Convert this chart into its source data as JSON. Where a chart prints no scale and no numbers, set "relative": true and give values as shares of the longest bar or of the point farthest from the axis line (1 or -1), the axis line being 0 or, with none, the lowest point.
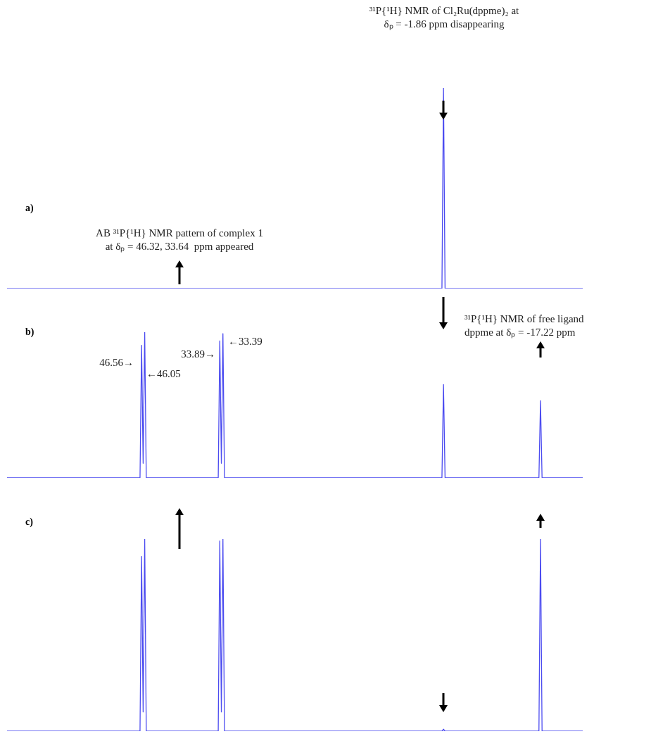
{
  "chart_data": [
    {
      "type": "line",
      "title": "a)",
      "relative": true,
      "color": "#4b4bf0",
      "categories": [
        null,
        null,
        null,
        null,
        null,
        null,
        null,
        null,
        null,
        null,
        null,
        null,
        null,
        null,
        null,
        null,
        null,
        null,
        null,
        null,
        null,
        null,
        null,
        null,
        null,
        null,
        null,
        null,
        null,
        null,
        null,
        null,
        null,
        null,
        null,
        null,
        null,
        null,
        null,
        null,
        null,
        null,
        null,
        null,
        null,
        null,
        null,
        null,
        null,
        null,
        null,
        null,
        null,
        null,
        null,
        null,
        null,
        null,
        null,
        null,
        null,
        null,
        null,
        null,
        null,
        null,
        null,
        null,
        null,
        null,
        null,
        null,
        null,
        null,
        null,
        null,
        null,
        null,
        null,
        null,
        null,
        null,
        null,
        null,
        null,
        null,
        null,
        null,
        null,
        null,
        null,
        null,
        null,
        null,
        null,
        null,
        null,
        null,
        null,
        null,
        null,
        null,
        null,
        null,
        null,
        null,
        null,
        null,
        null,
        null,
        null,
        null,
        null,
        null,
        null,
        null,
        null,
        null,
        null,
        null,
        null,
        null,
        null,
        null,
        null,
        null,
        null,
        null,
        null,
        null,
        null,
        null,
        null,
        null,
        null,
        null,
        null,
        null,
        null,
        null,
        null,
        null,
        null,
        null,
        null,
        null,
        null,
        null,
        null,
        null,
        null,
        null,
        null,
        null,
        null,
        null,
        null,
        null,
        null,
        null,
        null,
        null,
        null,
        null,
        null,
        null,
        null,
        null,
        null,
        null,
        null,
        null,
        null,
        null,
        null,
        null,
        null,
        null,
        null,
        null,
        null,
        null,
        null,
        null,
        null,
        null,
        null,
        null,
        null,
        null,
        null,
        null,
        null,
        null,
        null,
        null,
        null,
        null,
        null,
        null,
        null,
        null,
        null,
        null,
        null,
        null,
        null,
        null,
        null,
        null,
        null,
        null,
        null,
        null,
        null,
        null,
        null,
        null,
        null,
        null,
        null,
        null,
        null,
        null,
        null,
        null,
        null,
        null,
        null,
        null,
        null,
        null,
        null,
        null,
        null,
        null,
        null,
        null,
        null,
        null,
        null,
        null,
        null,
        null,
        null,
        null,
        null,
        null,
        null,
        null,
        null,
        null,
        null,
        null,
        null,
        null,
        null,
        null,
        null,
        null,
        null,
        null,
        null,
        null,
        null,
        null,
        null,
        null,
        null,
        null,
        null,
        null,
        null,
        null,
        null,
        null,
        null,
        null,
        null,
        null,
        null,
        null,
        null,
        null,
        null,
        null,
        null,
        null,
        null,
        null,
        null,
        null,
        null,
        null,
        null,
        null,
        null,
        null,
        null,
        null,
        null,
        null,
        null,
        null,
        null,
        null,
        null,
        null,
        null,
        null,
        null,
        null,
        null,
        null,
        null,
        null,
        null,
        null,
        null,
        null,
        null,
        null,
        null,
        null,
        null,
        null,
        null,
        null,
        null,
        null,
        null,
        null,
        null,
        null,
        null,
        null,
        null,
        null,
        null,
        null,
        null,
        null,
        null,
        null,
        null,
        null,
        null,
        null,
        null,
        null,
        null,
        null,
        null,
        null,
        null,
        null,
        null,
        null,
        null,
        null,
        null,
        null,
        null,
        null,
        null,
        null,
        null,
        null,
        null
      ],
      "values": [
        0,
        0,
        0,
        0,
        0,
        0,
        0,
        0,
        0,
        0,
        0,
        0,
        0,
        0,
        0,
        0,
        0,
        0,
        0,
        0,
        0,
        0,
        0,
        0,
        0,
        0,
        0,
        0,
        0,
        0,
        0,
        0,
        0,
        0,
        0,
        0,
        0,
        0,
        0,
        0,
        0,
        0,
        0,
        0,
        0,
        0,
        0,
        0,
        0,
        0,
        0,
        0,
        0,
        0,
        0,
        0,
        0,
        0,
        0,
        0,
        0,
        0,
        0,
        0,
        0,
        0,
        0,
        0,
        0,
        0,
        0,
        0,
        0,
        0,
        0,
        0,
        0,
        0,
        0,
        0,
        0,
        0,
        0,
        0,
        0,
        0,
        0,
        0,
        0,
        0,
        0,
        0,
        0,
        0,
        0,
        0,
        0,
        0,
        0,
        0,
        0,
        0,
        0,
        0,
        0,
        0,
        0,
        0,
        0,
        0,
        0,
        0,
        0,
        0,
        0,
        0,
        0,
        0,
        0,
        0,
        0,
        0,
        0,
        0,
        0,
        0,
        0,
        0,
        0,
        0,
        0,
        0,
        0,
        0,
        0,
        0,
        0,
        0,
        0,
        0,
        0,
        0,
        0,
        0,
        0,
        0,
        0,
        0,
        0,
        0,
        0,
        0,
        0,
        0,
        0,
        0,
        0,
        0,
        0,
        0,
        0,
        0,
        0,
        0,
        0,
        0,
        0,
        0,
        0,
        0,
        0,
        0,
        0,
        0,
        0,
        0,
        0,
        0,
        0,
        0,
        0,
        0,
        0,
        0,
        0,
        0,
        0,
        0,
        0,
        0,
        0,
        0,
        0,
        0,
        0,
        0,
        0,
        0,
        0,
        0,
        0,
        0,
        0,
        0,
        0,
        0,
        0,
        0,
        0,
        0,
        0,
        0,
        0,
        0,
        0,
        0,
        0,
        0,
        0,
        0,
        0,
        0,
        0,
        0,
        0,
        0,
        0,
        0,
        0,
        0,
        0,
        0,
        0,
        0,
        0,
        0,
        0,
        0,
        0,
        0,
        0,
        0,
        0,
        0,
        0,
        0,
        0,
        0,
        0,
        0,
        0,
        0,
        0,
        0,
        0,
        0,
        0,
        0,
        0,
        0,
        0,
        0,
        0,
        0,
        0,
        0,
        0,
        0,
        0,
        0,
        0,
        0,
        0,
        0,
        0,
        0,
        0,
        0,
        0,
        1,
        0,
        0,
        0,
        0,
        0,
        0,
        0,
        0,
        0,
        0,
        0,
        0,
        0,
        0,
        0,
        0,
        0,
        0,
        0,
        0,
        0,
        0,
        0,
        0,
        0,
        0,
        0,
        0,
        0,
        0,
        0,
        0,
        0,
        0,
        0,
        0,
        0,
        0,
        0,
        0,
        0,
        0,
        0,
        0,
        0,
        0,
        0,
        0,
        0,
        0,
        0,
        0,
        0,
        0,
        0,
        0,
        0,
        0,
        0,
        0,
        0,
        0,
        0,
        0,
        0,
        0,
        0,
        0,
        0,
        0,
        0,
        0,
        0,
        0,
        0,
        0,
        0,
        0,
        0,
        0,
        0,
        0,
        0,
        0,
        0,
        0,
        0,
        0,
        0
      ],
      "annotations": [
        "³¹P{¹H} NMR of Cl₂Ru(dppme)₂ at δₚ = -1.86 ppm disappearing",
        "AB ³¹P{¹H} NMR pattern of complex 1 at δₚ = 46.32, 33.64  ppm appeared"
      ]
    },
    {
      "type": "line",
      "title": "b)",
      "relative": true,
      "color": "#4b4bf0",
      "categories": [
        null,
        null,
        null,
        null,
        null,
        null,
        null,
        null,
        null,
        null,
        null,
        null,
        null,
        null,
        null,
        null,
        null,
        null,
        null,
        null,
        null,
        null,
        null,
        null,
        null,
        null,
        null,
        null,
        null,
        null,
        null,
        null,
        null,
        null,
        null,
        null,
        null,
        null,
        null,
        null,
        null,
        null,
        null,
        null,
        null,
        null,
        null,
        null,
        null,
        null,
        null,
        null,
        null,
        null,
        null,
        null,
        null,
        null,
        null,
        null,
        null,
        null,
        null,
        null,
        null,
        null,
        null,
        null,
        null,
        null,
        null,
        null,
        null,
        null,
        null,
        null,
        null,
        null,
        null,
        null,
        null,
        null,
        null,
        null,
        null,
        null,
        null,
        null,
        null,
        null,
        null,
        null,
        null,
        null,
        null,
        null,
        null,
        null,
        null,
        null,
        null,
        null,
        null,
        null,
        null,
        null,
        null,
        null,
        null,
        null,
        null,
        null,
        null,
        null,
        null,
        null,
        null,
        null,
        null,
        null,
        null,
        null,
        null,
        null,
        null,
        null,
        null,
        null,
        null,
        null,
        null,
        null,
        null,
        null,
        null,
        null,
        null,
        null,
        null,
        null,
        null,
        null,
        null,
        null,
        null,
        null,
        null,
        null,
        null,
        null,
        null,
        null,
        null,
        null,
        null,
        null,
        null,
        null,
        null,
        null,
        null,
        null,
        null,
        null,
        null,
        null,
        null,
        null,
        null,
        null,
        null,
        null,
        null,
        null,
        null,
        null,
        null,
        null,
        null,
        null,
        null,
        null,
        null,
        null,
        null,
        null,
        null,
        null,
        null,
        null,
        null,
        null,
        null,
        null,
        null,
        null,
        null,
        null,
        null,
        null,
        null,
        null,
        null,
        null,
        null,
        null,
        null,
        null,
        null,
        null,
        null,
        null,
        null,
        null,
        null,
        null,
        null,
        null,
        null,
        null,
        null,
        null,
        null,
        null,
        null,
        null,
        null,
        null,
        null,
        null,
        null,
        null,
        null,
        null,
        null,
        null,
        null,
        null,
        null,
        null,
        null,
        null,
        null,
        null,
        null,
        null,
        null,
        null,
        null,
        null,
        null,
        null,
        null,
        null,
        null,
        null,
        null,
        null,
        null,
        null,
        null,
        null,
        null,
        null,
        null,
        null,
        null,
        null,
        null,
        null,
        null,
        null,
        null,
        null,
        null,
        null,
        null,
        null,
        null,
        null,
        null,
        null,
        null,
        null,
        null,
        null,
        null,
        null,
        null,
        null,
        null,
        null,
        null,
        null,
        null,
        null,
        null,
        null,
        null,
        null,
        null,
        null,
        null,
        null,
        null,
        null,
        null,
        null,
        null,
        null,
        null,
        null,
        null,
        null,
        null,
        null,
        null,
        null,
        null,
        null,
        null,
        null,
        null,
        null,
        null,
        null,
        null,
        null,
        null,
        null,
        null,
        null,
        null,
        null,
        null,
        null,
        null,
        null,
        null,
        null,
        null,
        null,
        null,
        null,
        null,
        null,
        null,
        null,
        null,
        null,
        null,
        null,
        null,
        null,
        null,
        null,
        null,
        null,
        null,
        null,
        null,
        null,
        null,
        null,
        null,
        null,
        null,
        null,
        null
      ],
      "values": [
        0,
        0,
        0,
        0,
        0,
        0,
        0,
        0,
        0,
        0,
        0,
        0,
        0,
        0,
        0,
        0,
        0,
        0,
        0,
        0,
        0,
        0,
        0,
        0,
        0,
        0,
        0,
        0,
        0,
        0,
        0,
        0,
        0,
        0,
        0,
        0,
        0,
        0,
        0,
        0,
        0,
        0,
        0,
        0,
        0,
        0,
        0,
        0,
        0,
        0,
        0,
        0,
        0,
        0,
        0,
        0,
        0,
        0,
        0,
        0,
        0,
        0,
        0,
        0,
        0,
        0,
        0,
        0,
        0,
        0,
        0,
        0,
        0,
        0,
        0,
        0,
        0,
        0,
        0,
        0,
        0,
        0,
        0,
        0,
        0,
        0,
        0.91,
        0.1,
        1,
        0,
        0,
        0,
        0,
        0,
        0,
        0,
        0,
        0,
        0,
        0,
        0,
        0,
        0,
        0,
        0,
        0,
        0,
        0,
        0,
        0,
        0,
        0,
        0,
        0,
        0,
        0,
        0,
        0,
        0,
        0,
        0,
        0,
        0,
        0,
        0,
        0,
        0,
        0,
        0,
        0,
        0,
        0,
        0,
        0,
        0,
        0,
        0.94,
        0.1,
        0.99,
        0,
        0,
        0,
        0,
        0,
        0,
        0,
        0,
        0,
        0,
        0,
        0,
        0,
        0,
        0,
        0,
        0,
        0,
        0,
        0,
        0,
        0,
        0,
        0,
        0,
        0,
        0,
        0,
        0,
        0,
        0,
        0,
        0,
        0,
        0,
        0,
        0,
        0,
        0,
        0,
        0,
        0,
        0,
        0,
        0,
        0,
        0,
        0,
        0,
        0,
        0,
        0,
        0,
        0,
        0,
        0,
        0,
        0,
        0,
        0,
        0,
        0,
        0,
        0,
        0,
        0,
        0,
        0,
        0,
        0,
        0,
        0,
        0,
        0,
        0,
        0,
        0,
        0,
        0,
        0,
        0,
        0,
        0,
        0,
        0,
        0,
        0,
        0,
        0,
        0,
        0,
        0,
        0,
        0,
        0,
        0,
        0,
        0,
        0,
        0,
        0,
        0,
        0,
        0,
        0,
        0,
        0,
        0,
        0,
        0,
        0,
        0,
        0,
        0,
        0,
        0,
        0,
        0,
        0,
        0,
        0,
        0,
        0,
        0,
        0,
        0,
        0,
        0,
        0,
        0,
        0,
        0,
        0,
        0,
        0,
        0,
        0,
        0,
        0,
        0,
        0.64,
        0,
        0,
        0,
        0,
        0,
        0,
        0,
        0,
        0,
        0,
        0,
        0,
        0,
        0,
        0,
        0,
        0,
        0,
        0,
        0,
        0,
        0,
        0,
        0,
        0,
        0,
        0,
        0,
        0,
        0,
        0,
        0,
        0,
        0,
        0,
        0,
        0,
        0,
        0,
        0,
        0,
        0,
        0,
        0,
        0,
        0,
        0,
        0,
        0,
        0,
        0,
        0,
        0,
        0,
        0,
        0,
        0,
        0,
        0,
        0,
        0,
        0.53,
        0,
        0,
        0,
        0,
        0,
        0,
        0,
        0,
        0,
        0,
        0,
        0,
        0,
        0,
        0,
        0,
        0,
        0,
        0,
        0,
        0,
        0,
        0,
        0,
        0,
        0,
        0
      ],
      "annotations": [
        "³¹P{¹H} NMR of free ligand dppme at δₚ = -17.22 ppm",
        "46.56→",
        "←46.05",
        "33.89→",
        "←33.39"
      ]
    },
    {
      "type": "line",
      "title": "c)",
      "relative": true,
      "color": "#4b4bf0",
      "categories": [
        null,
        null,
        null,
        null,
        null,
        null,
        null,
        null,
        null,
        null,
        null,
        null,
        null,
        null,
        null,
        null,
        null,
        null,
        null,
        null,
        null,
        null,
        null,
        null,
        null,
        null,
        null,
        null,
        null,
        null,
        null,
        null,
        null,
        null,
        null,
        null,
        null,
        null,
        null,
        null,
        null,
        null,
        null,
        null,
        null,
        null,
        null,
        null,
        null,
        null,
        null,
        null,
        null,
        null,
        null,
        null,
        null,
        null,
        null,
        null,
        null,
        null,
        null,
        null,
        null,
        null,
        null,
        null,
        null,
        null,
        null,
        null,
        null,
        null,
        null,
        null,
        null,
        null,
        null,
        null,
        null,
        null,
        null,
        null,
        null,
        null,
        null,
        null,
        null,
        null,
        null,
        null,
        null,
        null,
        null,
        null,
        null,
        null,
        null,
        null,
        null,
        null,
        null,
        null,
        null,
        null,
        null,
        null,
        null,
        null,
        null,
        null,
        null,
        null,
        null,
        null,
        null,
        null,
        null,
        null,
        null,
        null,
        null,
        null,
        null,
        null,
        null,
        null,
        null,
        null,
        null,
        null,
        null,
        null,
        null,
        null,
        null,
        null,
        null,
        null,
        null,
        null,
        null,
        null,
        null,
        null,
        null,
        null,
        null,
        null,
        null,
        null,
        null,
        null,
        null,
        null,
        null,
        null,
        null,
        null,
        null,
        null,
        null,
        null,
        null,
        null,
        null,
        null,
        null,
        null,
        null,
        null,
        null,
        null,
        null,
        null,
        null,
        null,
        null,
        null,
        null,
        null,
        null,
        null,
        null,
        null,
        null,
        null,
        null,
        null,
        null,
        null,
        null,
        null,
        null,
        null,
        null,
        null,
        null,
        null,
        null,
        null,
        null,
        null,
        null,
        null,
        null,
        null,
        null,
        null,
        null,
        null,
        null,
        null,
        null,
        null,
        null,
        null,
        null,
        null,
        null,
        null,
        null,
        null,
        null,
        null,
        null,
        null,
        null,
        null,
        null,
        null,
        null,
        null,
        null,
        null,
        null,
        null,
        null,
        null,
        null,
        null,
        null,
        null,
        null,
        null,
        null,
        null,
        null,
        null,
        null,
        null,
        null,
        null,
        null,
        null,
        null,
        null,
        null,
        null,
        null,
        null,
        null,
        null,
        null,
        null,
        null,
        null,
        null,
        null,
        null,
        null,
        null,
        null,
        null,
        null,
        null,
        null,
        null,
        null,
        null,
        null,
        null,
        null,
        null,
        null,
        null,
        null,
        null,
        null,
        null,
        null,
        null,
        null,
        null,
        null,
        null,
        null,
        null,
        null,
        null,
        null,
        null,
        null,
        null,
        null,
        null,
        null,
        null,
        null,
        null,
        null,
        null,
        null,
        null,
        null,
        null,
        null,
        null,
        null,
        null,
        null,
        null,
        null,
        null,
        null,
        null,
        null,
        null,
        null,
        null,
        null,
        null,
        null,
        null,
        null,
        null,
        null,
        null,
        null,
        null,
        null,
        null,
        null,
        null,
        null,
        null,
        null,
        null,
        null,
        null,
        null,
        null,
        null,
        null,
        null,
        null,
        null,
        null,
        null,
        null,
        null,
        null,
        null,
        null,
        null,
        null,
        null,
        null
      ],
      "values": [
        0,
        0,
        0,
        0,
        0,
        0,
        0,
        0,
        0,
        0,
        0,
        0,
        0,
        0,
        0,
        0,
        0,
        0,
        0,
        0,
        0,
        0,
        0,
        0,
        0,
        0,
        0,
        0,
        0,
        0,
        0,
        0,
        0,
        0,
        0,
        0,
        0,
        0,
        0,
        0,
        0,
        0,
        0,
        0,
        0,
        0,
        0,
        0,
        0,
        0,
        0,
        0,
        0,
        0,
        0,
        0,
        0,
        0,
        0,
        0,
        0,
        0,
        0,
        0,
        0,
        0,
        0,
        0,
        0,
        0,
        0,
        0,
        0,
        0,
        0,
        0,
        0,
        0,
        0,
        0,
        0,
        0,
        0,
        0,
        0,
        0,
        0.91,
        0.1,
        1,
        0,
        0,
        0,
        0,
        0,
        0,
        0,
        0,
        0,
        0,
        0,
        0,
        0,
        0,
        0,
        0,
        0,
        0,
        0,
        0,
        0,
        0,
        0,
        0,
        0,
        0,
        0,
        0,
        0,
        0,
        0,
        0,
        0,
        0,
        0,
        0,
        0,
        0,
        0,
        0,
        0,
        0,
        0,
        0,
        0,
        0,
        0,
        0.99,
        0.1,
        1,
        0,
        0,
        0,
        0,
        0,
        0,
        0,
        0,
        0,
        0,
        0,
        0,
        0,
        0,
        0,
        0,
        0,
        0,
        0,
        0,
        0,
        0,
        0,
        0,
        0,
        0,
        0,
        0,
        0,
        0,
        0,
        0,
        0,
        0,
        0,
        0,
        0,
        0,
        0,
        0,
        0,
        0,
        0,
        0,
        0,
        0,
        0,
        0,
        0,
        0,
        0,
        0,
        0,
        0,
        0,
        0,
        0,
        0,
        0,
        0,
        0,
        0,
        0,
        0,
        0,
        0,
        0,
        0,
        0,
        0,
        0,
        0,
        0,
        0,
        0,
        0,
        0,
        0,
        0,
        0,
        0,
        0,
        0,
        0,
        0,
        0,
        0,
        0,
        0,
        0,
        0,
        0,
        0,
        0,
        0,
        0,
        0,
        0,
        0,
        0,
        0,
        0,
        0,
        0,
        0,
        0,
        0,
        0,
        0,
        0,
        0,
        0,
        0,
        0,
        0,
        0,
        0,
        0,
        0,
        0,
        0,
        0,
        0,
        0,
        0,
        0,
        0,
        0,
        0,
        0,
        0,
        0,
        0,
        0,
        0,
        0,
        0,
        0,
        0,
        0,
        0.01,
        0,
        0,
        0,
        0,
        0,
        0,
        0,
        0,
        0,
        0,
        0,
        0,
        0,
        0,
        0,
        0,
        0,
        0,
        0,
        0,
        0,
        0,
        0,
        0,
        0,
        0,
        0,
        0,
        0,
        0,
        0,
        0,
        0,
        0,
        0,
        0,
        0,
        0,
        0,
        0,
        0,
        0,
        0,
        0,
        0,
        0,
        0,
        0,
        0,
        0,
        0,
        0,
        0,
        0,
        0,
        0,
        0,
        0,
        0,
        0,
        0,
        1,
        0,
        0,
        0,
        0,
        0,
        0,
        0,
        0,
        0,
        0,
        0,
        0,
        0,
        0,
        0,
        0,
        0,
        0,
        0,
        0,
        0,
        0,
        0,
        0,
        0,
        0,
        0
      ]
    }
  ]
}
